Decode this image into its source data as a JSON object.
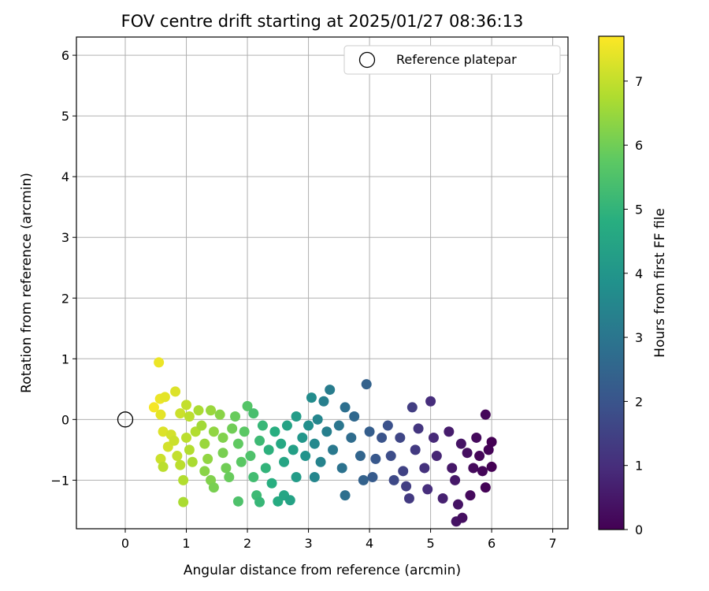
{
  "chart_data": {
    "type": "scatter",
    "title": "FOV centre drift starting at 2025/01/27 08:36:13",
    "xlabel": "Angular distance from reference (arcmin)",
    "ylabel": "Rotation from reference (arcmin)",
    "xlim": [
      -0.8,
      7.25
    ],
    "ylim": [
      -1.8,
      6.3
    ],
    "x_ticks": [
      "0",
      "1",
      "2",
      "3",
      "4",
      "5",
      "6",
      "7"
    ],
    "y_ticks": [
      "−1",
      "0",
      "1",
      "2",
      "3",
      "4",
      "5",
      "6"
    ],
    "grid": true,
    "legend": {
      "placement": "top-right",
      "label": "Reference platepar"
    },
    "reference_point": {
      "x": 0,
      "y": 0
    },
    "colorbar": {
      "label": "Hours from first FF file",
      "colormap": "viridis",
      "range": [
        0,
        7.7
      ],
      "ticks": [
        "0",
        "1",
        "2",
        "3",
        "4",
        "5",
        "6",
        "7"
      ]
    },
    "series": [
      {
        "color_by": "hours",
        "points": [
          {
            "x": 0.55,
            "y": 0.94,
            "h": 7.5
          },
          {
            "x": 0.47,
            "y": 0.2,
            "h": 7.6
          },
          {
            "x": 0.57,
            "y": 0.34,
            "h": 7.5
          },
          {
            "x": 0.65,
            "y": 0.37,
            "h": 7.4
          },
          {
            "x": 0.82,
            "y": 0.46,
            "h": 7.3
          },
          {
            "x": 0.58,
            "y": 0.08,
            "h": 7.4
          },
          {
            "x": 0.62,
            "y": -0.2,
            "h": 7.3
          },
          {
            "x": 0.7,
            "y": -0.45,
            "h": 7.2
          },
          {
            "x": 0.58,
            "y": -0.65,
            "h": 7.1
          },
          {
            "x": 0.62,
            "y": -0.78,
            "h": 6.9
          },
          {
            "x": 0.75,
            "y": -0.25,
            "h": 7.2
          },
          {
            "x": 0.8,
            "y": -0.35,
            "h": 7.1
          },
          {
            "x": 0.85,
            "y": -0.6,
            "h": 7.0
          },
          {
            "x": 0.9,
            "y": -0.75,
            "h": 6.9
          },
          {
            "x": 0.95,
            "y": -1.0,
            "h": 6.8
          },
          {
            "x": 0.95,
            "y": -1.36,
            "h": 6.7
          },
          {
            "x": 0.9,
            "y": 0.1,
            "h": 7.1
          },
          {
            "x": 1.0,
            "y": 0.24,
            "h": 7.0
          },
          {
            "x": 1.05,
            "y": 0.05,
            "h": 6.9
          },
          {
            "x": 1.0,
            "y": -0.3,
            "h": 6.9
          },
          {
            "x": 1.05,
            "y": -0.5,
            "h": 6.8
          },
          {
            "x": 1.1,
            "y": -0.7,
            "h": 6.7
          },
          {
            "x": 1.15,
            "y": -0.2,
            "h": 6.8
          },
          {
            "x": 1.2,
            "y": 0.15,
            "h": 6.7
          },
          {
            "x": 1.25,
            "y": -0.1,
            "h": 6.6
          },
          {
            "x": 1.3,
            "y": -0.4,
            "h": 6.5
          },
          {
            "x": 1.35,
            "y": -0.65,
            "h": 6.4
          },
          {
            "x": 1.3,
            "y": -0.85,
            "h": 6.3
          },
          {
            "x": 1.4,
            "y": -1.0,
            "h": 6.2
          },
          {
            "x": 1.45,
            "y": -1.12,
            "h": 6.1
          },
          {
            "x": 1.4,
            "y": 0.15,
            "h": 6.5
          },
          {
            "x": 1.45,
            "y": -0.2,
            "h": 6.4
          },
          {
            "x": 1.55,
            "y": 0.08,
            "h": 6.3
          },
          {
            "x": 1.6,
            "y": -0.3,
            "h": 6.2
          },
          {
            "x": 1.6,
            "y": -0.55,
            "h": 6.1
          },
          {
            "x": 1.65,
            "y": -0.8,
            "h": 6.0
          },
          {
            "x": 1.7,
            "y": -0.95,
            "h": 5.9
          },
          {
            "x": 1.75,
            "y": -0.15,
            "h": 6.0
          },
          {
            "x": 1.8,
            "y": 0.05,
            "h": 5.9
          },
          {
            "x": 1.85,
            "y": -0.4,
            "h": 5.8
          },
          {
            "x": 1.9,
            "y": -0.7,
            "h": 5.7
          },
          {
            "x": 1.85,
            "y": -1.35,
            "h": 5.5
          },
          {
            "x": 1.95,
            "y": -0.2,
            "h": 5.7
          },
          {
            "x": 2.0,
            "y": 0.22,
            "h": 5.6
          },
          {
            "x": 2.05,
            "y": -0.6,
            "h": 5.5
          },
          {
            "x": 2.1,
            "y": 0.1,
            "h": 5.4
          },
          {
            "x": 2.1,
            "y": -0.95,
            "h": 5.3
          },
          {
            "x": 2.15,
            "y": -1.25,
            "h": 5.2
          },
          {
            "x": 2.2,
            "y": -1.36,
            "h": 5.1
          },
          {
            "x": 2.2,
            "y": -0.35,
            "h": 5.2
          },
          {
            "x": 2.25,
            "y": -0.1,
            "h": 5.1
          },
          {
            "x": 2.3,
            "y": -0.8,
            "h": 5.0
          },
          {
            "x": 2.35,
            "y": -0.5,
            "h": 4.9
          },
          {
            "x": 2.4,
            "y": -1.05,
            "h": 4.8
          },
          {
            "x": 2.45,
            "y": -0.2,
            "h": 4.8
          },
          {
            "x": 2.5,
            "y": -1.35,
            "h": 4.7
          },
          {
            "x": 2.55,
            "y": -0.4,
            "h": 4.6
          },
          {
            "x": 2.6,
            "y": -1.25,
            "h": 4.5
          },
          {
            "x": 2.6,
            "y": -0.7,
            "h": 4.5
          },
          {
            "x": 2.65,
            "y": -0.1,
            "h": 4.4
          },
          {
            "x": 2.7,
            "y": -1.33,
            "h": 4.4
          },
          {
            "x": 2.75,
            "y": -0.5,
            "h": 4.3
          },
          {
            "x": 2.8,
            "y": 0.05,
            "h": 4.2
          },
          {
            "x": 2.8,
            "y": -0.95,
            "h": 4.2
          },
          {
            "x": 2.9,
            "y": -0.3,
            "h": 4.0
          },
          {
            "x": 2.95,
            "y": -0.6,
            "h": 3.9
          },
          {
            "x": 3.0,
            "y": -0.1,
            "h": 3.8
          },
          {
            "x": 3.05,
            "y": 0.36,
            "h": 3.7
          },
          {
            "x": 3.1,
            "y": -0.4,
            "h": 3.6
          },
          {
            "x": 3.1,
            "y": -0.95,
            "h": 3.5
          },
          {
            "x": 3.15,
            "y": 0.0,
            "h": 3.5
          },
          {
            "x": 3.2,
            "y": -0.7,
            "h": 3.4
          },
          {
            "x": 3.25,
            "y": 0.3,
            "h": 3.3
          },
          {
            "x": 3.3,
            "y": -0.2,
            "h": 3.3
          },
          {
            "x": 3.35,
            "y": 0.49,
            "h": 3.2
          },
          {
            "x": 3.4,
            "y": -0.5,
            "h": 3.1
          },
          {
            "x": 3.5,
            "y": -0.1,
            "h": 3.0
          },
          {
            "x": 3.55,
            "y": -0.8,
            "h": 2.9
          },
          {
            "x": 3.6,
            "y": 0.2,
            "h": 2.8
          },
          {
            "x": 3.6,
            "y": -1.25,
            "h": 2.8
          },
          {
            "x": 3.7,
            "y": -0.3,
            "h": 2.7
          },
          {
            "x": 3.75,
            "y": 0.05,
            "h": 2.6
          },
          {
            "x": 3.85,
            "y": -0.6,
            "h": 2.5
          },
          {
            "x": 3.9,
            "y": -1.0,
            "h": 2.4
          },
          {
            "x": 3.95,
            "y": 0.58,
            "h": 2.4
          },
          {
            "x": 4.0,
            "y": -0.2,
            "h": 2.3
          },
          {
            "x": 4.05,
            "y": -0.95,
            "h": 2.2
          },
          {
            "x": 4.1,
            "y": -0.65,
            "h": 2.1
          },
          {
            "x": 4.2,
            "y": -0.3,
            "h": 2.0
          },
          {
            "x": 4.3,
            "y": -0.1,
            "h": 1.9
          },
          {
            "x": 4.35,
            "y": -0.6,
            "h": 1.8
          },
          {
            "x": 4.4,
            "y": -1.0,
            "h": 1.7
          },
          {
            "x": 4.5,
            "y": -0.3,
            "h": 1.6
          },
          {
            "x": 4.55,
            "y": -0.85,
            "h": 1.5
          },
          {
            "x": 4.6,
            "y": -1.1,
            "h": 1.4
          },
          {
            "x": 4.65,
            "y": -1.3,
            "h": 1.3
          },
          {
            "x": 4.7,
            "y": 0.2,
            "h": 1.4
          },
          {
            "x": 4.75,
            "y": -0.5,
            "h": 1.3
          },
          {
            "x": 4.8,
            "y": -0.15,
            "h": 1.2
          },
          {
            "x": 4.9,
            "y": -0.8,
            "h": 1.1
          },
          {
            "x": 4.95,
            "y": -1.15,
            "h": 1.0
          },
          {
            "x": 5.0,
            "y": 0.3,
            "h": 1.0
          },
          {
            "x": 5.05,
            "y": -0.3,
            "h": 0.9
          },
          {
            "x": 5.1,
            "y": -0.6,
            "h": 0.8
          },
          {
            "x": 5.2,
            "y": -1.3,
            "h": 0.7
          },
          {
            "x": 5.3,
            "y": -0.2,
            "h": 0.6
          },
          {
            "x": 5.35,
            "y": -0.8,
            "h": 0.5
          },
          {
            "x": 5.4,
            "y": -1.0,
            "h": 0.5
          },
          {
            "x": 5.42,
            "y": -1.68,
            "h": 0.4
          },
          {
            "x": 5.45,
            "y": -1.4,
            "h": 0.4
          },
          {
            "x": 5.5,
            "y": -0.4,
            "h": 0.4
          },
          {
            "x": 5.52,
            "y": -1.62,
            "h": 0.3
          },
          {
            "x": 5.6,
            "y": -0.55,
            "h": 0.3
          },
          {
            "x": 5.65,
            "y": -1.25,
            "h": 0.2
          },
          {
            "x": 5.7,
            "y": -0.8,
            "h": 0.2
          },
          {
            "x": 5.75,
            "y": -0.3,
            "h": 0.2
          },
          {
            "x": 5.8,
            "y": -0.6,
            "h": 0.1
          },
          {
            "x": 5.85,
            "y": -0.85,
            "h": 0.1
          },
          {
            "x": 5.9,
            "y": 0.08,
            "h": 0.1
          },
          {
            "x": 5.9,
            "y": -1.12,
            "h": 0.05
          },
          {
            "x": 5.95,
            "y": -0.5,
            "h": 0.05
          },
          {
            "x": 6.0,
            "y": -0.37,
            "h": 0.0
          },
          {
            "x": 6.0,
            "y": -0.78,
            "h": 0.0
          }
        ]
      }
    ]
  }
}
